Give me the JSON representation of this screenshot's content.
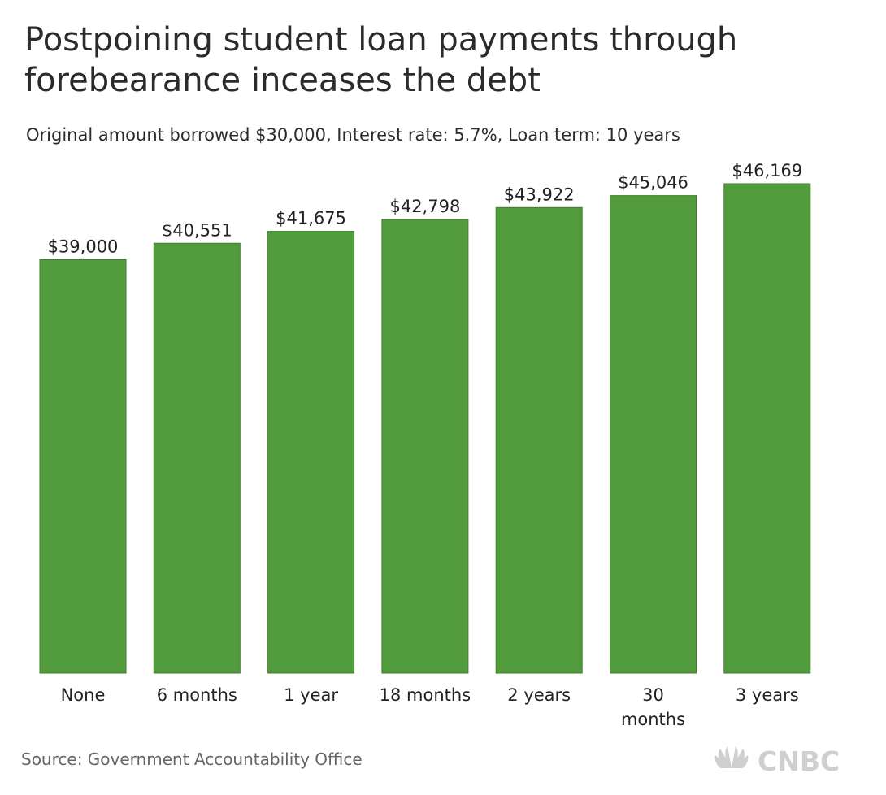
{
  "title": "Postpoining student loan payments through forebearance inceases the debt",
  "subtitle": "Original amount borrowed $30,000, Interest rate: 5.7%, Loan term: 10 years",
  "source": "Source: Government Accountability Office",
  "brand": {
    "name": "CNBC",
    "icon": "peacock-logo-icon"
  },
  "colors": {
    "bar": "#539c3d",
    "bar_edge": "#3f7d2c",
    "text": "#222222",
    "source": "#666666",
    "logo": "#cfcfcf"
  },
  "chart_data": {
    "type": "bar",
    "categories": [
      [
        "None"
      ],
      [
        "6 months"
      ],
      [
        "1 year"
      ],
      [
        "18 months"
      ],
      [
        "2 years"
      ],
      [
        "30",
        "months"
      ],
      [
        "3 years"
      ]
    ],
    "values": [
      39000,
      40551,
      41675,
      42798,
      43922,
      45046,
      46169
    ],
    "data_labels": [
      "$39,000",
      "$40,551",
      "$41,675",
      "$42,798",
      "$43,922",
      "$45,046",
      "$46,169"
    ],
    "ylim": [
      0,
      46169
    ],
    "grid": false,
    "legend": false
  }
}
